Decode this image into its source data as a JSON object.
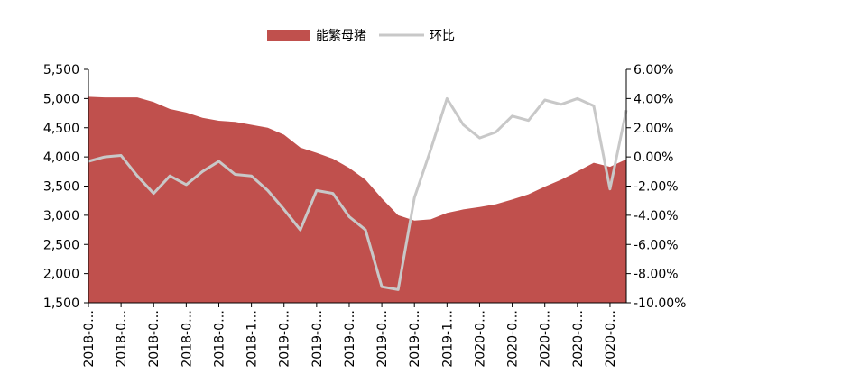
{
  "chart_data": {
    "type": "area",
    "legend": {
      "placement": "top-center"
    },
    "colors": {
      "area": "#c0504d",
      "line": "#c8c8c8"
    },
    "x_tick_labels": [
      "2018-0…",
      "2018-0…",
      "2018-0…",
      "2018-0…",
      "2018-0…",
      "2018-1…",
      "2019-0…",
      "2019-0…",
      "2019-0…",
      "2019-0…",
      "2019-0…",
      "2019-1…",
      "2020-0…",
      "2020-0…",
      "2020-0…",
      "2020-0…",
      "2020-0…"
    ],
    "y_left": {
      "min": 1500,
      "max": 5500,
      "ticks": [
        "1,500",
        "2,000",
        "2,500",
        "3,000",
        "3,500",
        "4,000",
        "4,500",
        "5,000",
        "5,500"
      ]
    },
    "y_right": {
      "min": -10,
      "max": 6,
      "ticks": [
        "-10.00%",
        "-8.00%",
        "-6.00%",
        "-4.00%",
        "-2.00%",
        "0.00%",
        "2.00%",
        "4.00%",
        "6.00%"
      ]
    },
    "series": [
      {
        "name": "能繁母猪",
        "axis": "left",
        "type": "area",
        "values": [
          5030,
          5020,
          5020,
          5020,
          4940,
          4820,
          4760,
          4670,
          4620,
          4600,
          4550,
          4500,
          4380,
          4160,
          4070,
          3970,
          3810,
          3610,
          3290,
          3000,
          2910,
          2930,
          3040,
          3100,
          3140,
          3190,
          3270,
          3360,
          3490,
          3610,
          3750,
          3900,
          3830,
          3960
        ]
      },
      {
        "name": "环比",
        "axis": "right",
        "type": "line",
        "values": [
          -0.3,
          0.0,
          0.1,
          -1.3,
          -2.5,
          -1.3,
          -1.9,
          -1.0,
          -0.3,
          -1.2,
          -1.3,
          -2.3,
          -3.6,
          -5.0,
          -2.3,
          -2.5,
          -4.1,
          -5.0,
          -8.9,
          -9.1,
          -2.8,
          0.5,
          4.0,
          2.2,
          1.3,
          1.7,
          2.8,
          2.5,
          3.9,
          3.6,
          4.0,
          3.5,
          -2.2,
          3.2
        ]
      }
    ]
  }
}
